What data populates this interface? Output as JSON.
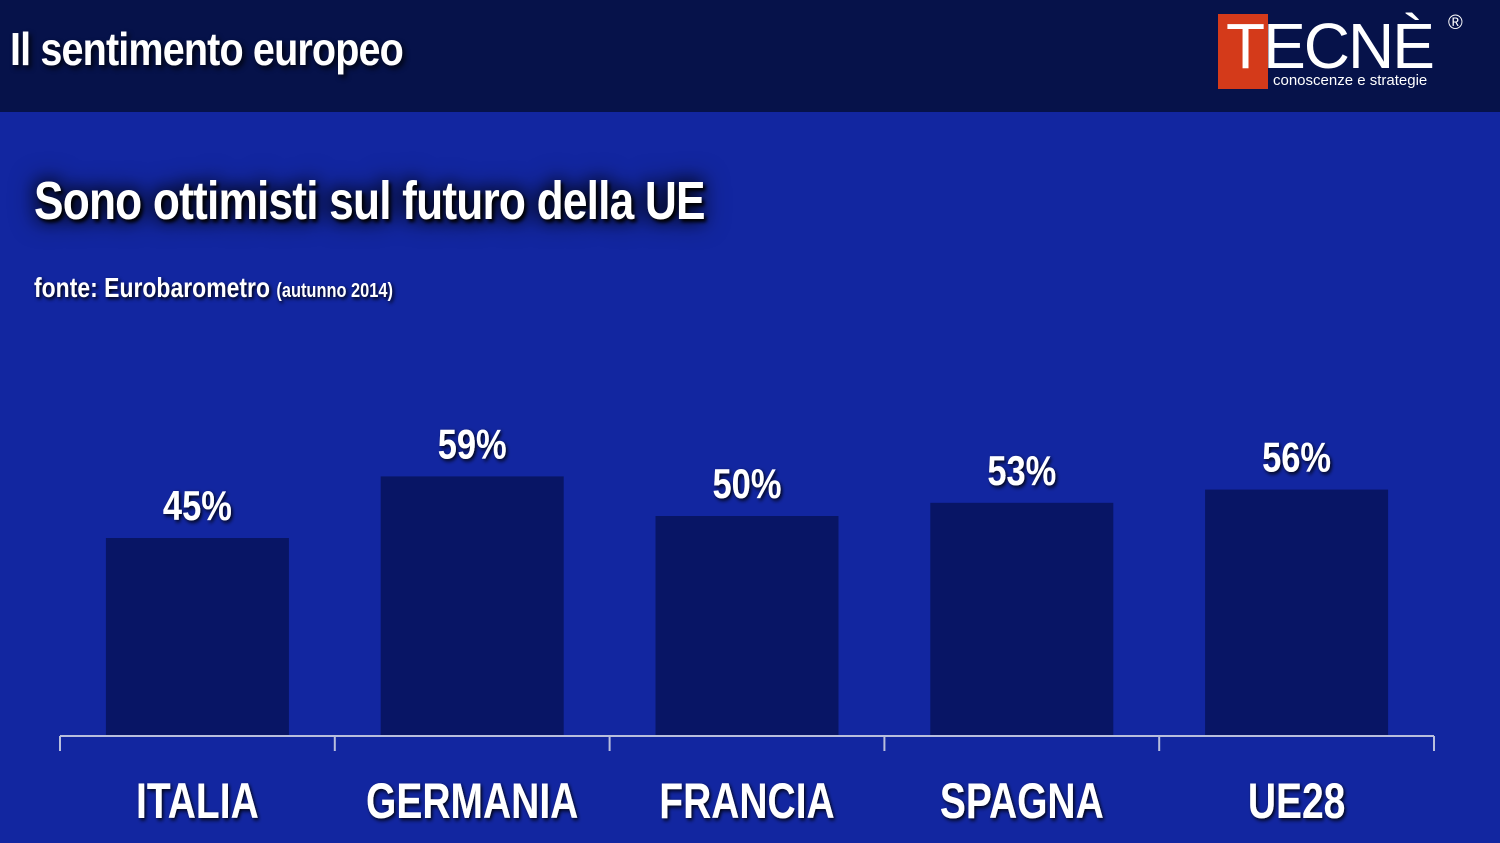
{
  "header": {
    "title": "Il sentimento europeo"
  },
  "logo": {
    "name": "TECNÈ",
    "registered": "®",
    "tagline": "conoscenze e strategie"
  },
  "colors": {
    "background": "#1226a0",
    "header_bar": "#06124a",
    "bar": "#081565",
    "logo_red": "#d43a1a",
    "axis": "#b8bedd"
  },
  "chart_data": {
    "type": "bar",
    "title": "Sono ottimisti sul futuro della UE",
    "source": "fonte: Eurobarometro",
    "source_note": "(autunno 2014)",
    "categories": [
      "ITALIA",
      "GERMANIA",
      "FRANCIA",
      "SPAGNA",
      "UE28"
    ],
    "values": [
      45,
      59,
      50,
      53,
      56
    ],
    "value_labels": [
      "45%",
      "59%",
      "50%",
      "53%",
      "56%"
    ],
    "unit": "%",
    "ylim": [
      0,
      100
    ],
    "grid": false,
    "legend": false
  }
}
